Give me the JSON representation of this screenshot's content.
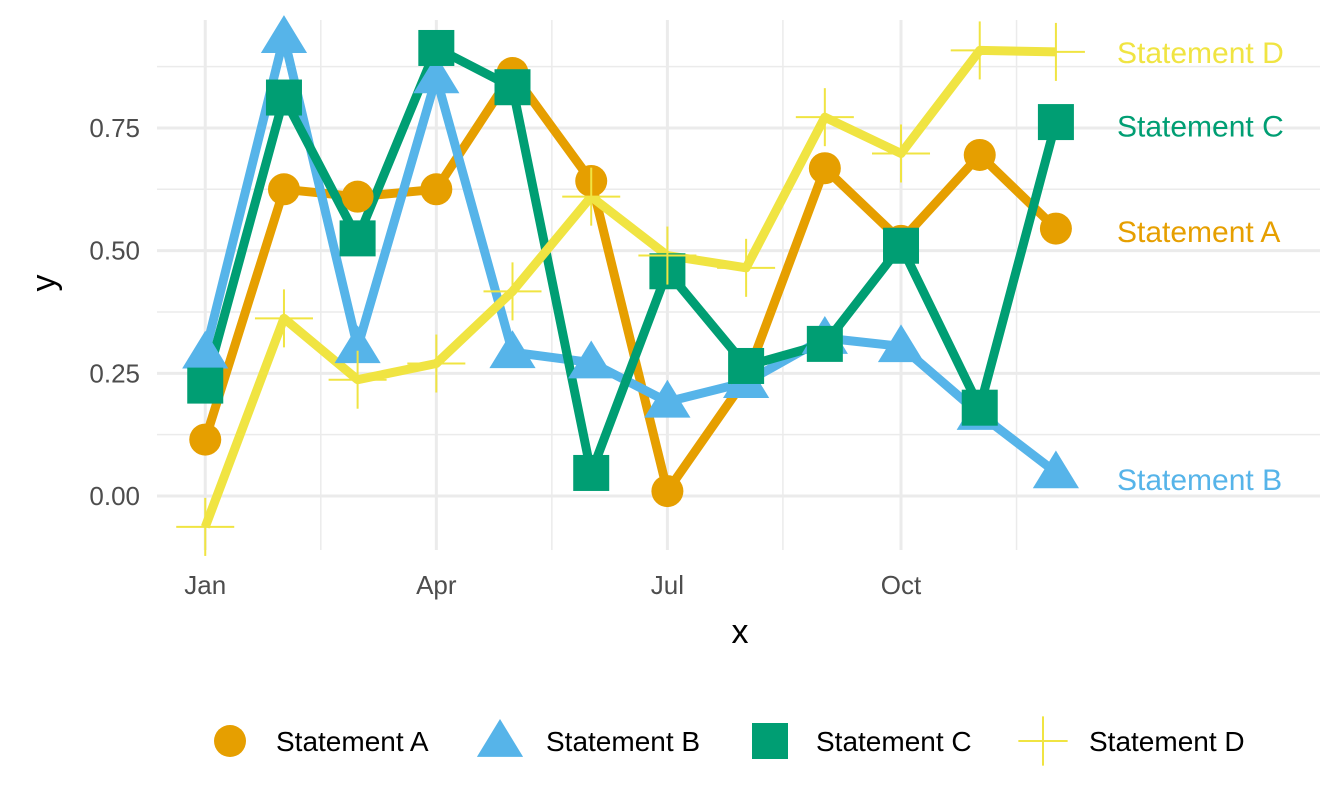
{
  "chart_data": {
    "type": "line",
    "xlabel": "x",
    "ylabel": "y",
    "x": [
      "2020-01-01",
      "2020-02-01",
      "2020-03-01",
      "2020-04-01",
      "2020-05-01",
      "2020-06-01",
      "2020-07-01",
      "2020-08-01",
      "2020-09-01",
      "2020-10-01",
      "2020-11-01",
      "2020-12-01"
    ],
    "x_tick_labels": [
      "Jan",
      "Apr",
      "Jul",
      "Oct"
    ],
    "x_tick_dates": [
      "2020-01-01",
      "2020-04-01",
      "2020-07-01",
      "2020-10-01"
    ],
    "xlim": [
      "2019-12-13",
      "2021-03-15"
    ],
    "y_ticks": [
      0.0,
      0.25,
      0.5,
      0.75
    ],
    "y_tick_labels": [
      "0.00",
      "0.25",
      "0.50",
      "0.75"
    ],
    "ylim": [
      -0.11,
      0.97
    ],
    "grid": true,
    "legend_position": "bottom",
    "series": [
      {
        "name": "Statement A",
        "color": "#E69F00",
        "marker": "circle",
        "values": [
          0.115,
          0.625,
          0.61,
          0.625,
          0.862,
          0.642,
          0.01,
          0.24,
          0.668,
          0.52,
          0.695,
          0.545
        ]
      },
      {
        "name": "Statement B",
        "color": "#56B4E9",
        "marker": "triangle",
        "values": [
          0.292,
          0.935,
          0.303,
          0.853,
          0.293,
          0.272,
          0.192,
          0.232,
          0.322,
          0.305,
          0.167,
          0.048
        ]
      },
      {
        "name": "Statement C",
        "color": "#009E73",
        "marker": "square",
        "values": [
          0.225,
          0.812,
          0.525,
          0.913,
          0.833,
          0.047,
          0.458,
          0.265,
          0.31,
          0.51,
          0.18,
          0.762
        ]
      },
      {
        "name": "Statement D",
        "color": "#F0E442",
        "marker": "plus",
        "values": [
          -0.063,
          0.362,
          0.237,
          0.27,
          0.417,
          0.61,
          0.49,
          0.465,
          0.772,
          0.698,
          0.908,
          0.905
        ]
      }
    ],
    "end_labels": [
      {
        "text": "Statement D",
        "color": "#F0E442",
        "y": 0.905
      },
      {
        "text": "Statement C",
        "color": "#009E73",
        "y": 0.755
      },
      {
        "text": "Statement A",
        "color": "#E69F00",
        "y": 0.54
      },
      {
        "text": "Statement B",
        "color": "#56B4E9",
        "y": 0.035
      }
    ]
  }
}
